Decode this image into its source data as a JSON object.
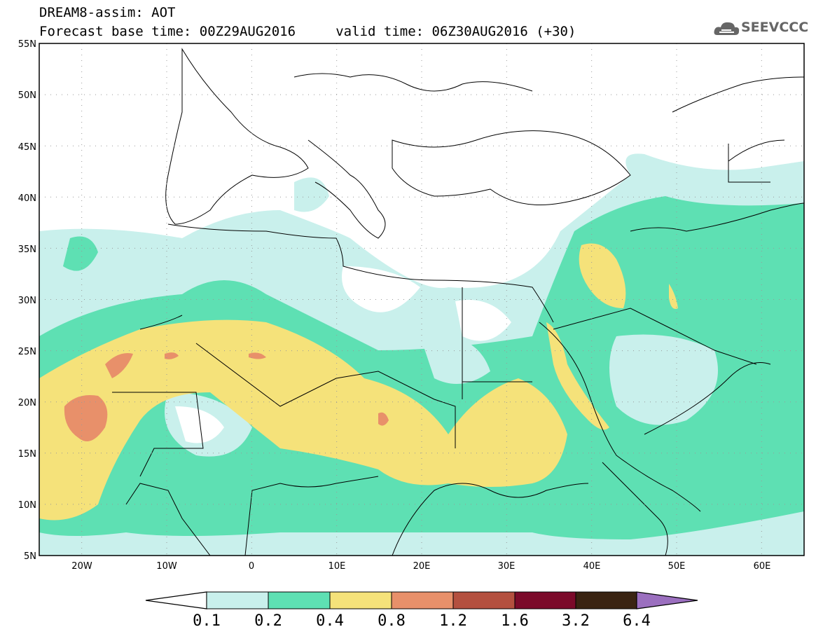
{
  "title": {
    "line1": "DREAM8-assim: AOT",
    "line2": "Forecast base time: 00Z29AUG2016     valid time: 06Z30AUG2016 (+30)"
  },
  "logo": {
    "text": "SEEVCCC",
    "icon": "cloud-icon"
  },
  "map": {
    "lat_labels": [
      "55N",
      "50N",
      "45N",
      "40N",
      "35N",
      "30N",
      "25N",
      "20N",
      "15N",
      "10N",
      "5N"
    ],
    "lon_labels": [
      "20W",
      "10W",
      "0",
      "10E",
      "20E",
      "30E",
      "40E",
      "50E",
      "60E"
    ],
    "extent": {
      "lon": [
        -25,
        65
      ],
      "lat": [
        5,
        55
      ]
    },
    "grid": "dotted"
  },
  "colorbar": {
    "ticks": [
      "0.1",
      "0.2",
      "0.4",
      "0.8",
      "1.2",
      "1.6",
      "3.2",
      "6.4"
    ],
    "colors": [
      "#ffffff",
      "#c9f0ec",
      "#5ee0b3",
      "#f5e27a",
      "#e8906a",
      "#b4503f",
      "#7b0a2a",
      "#3a2412",
      "#9b6fbf"
    ]
  }
}
